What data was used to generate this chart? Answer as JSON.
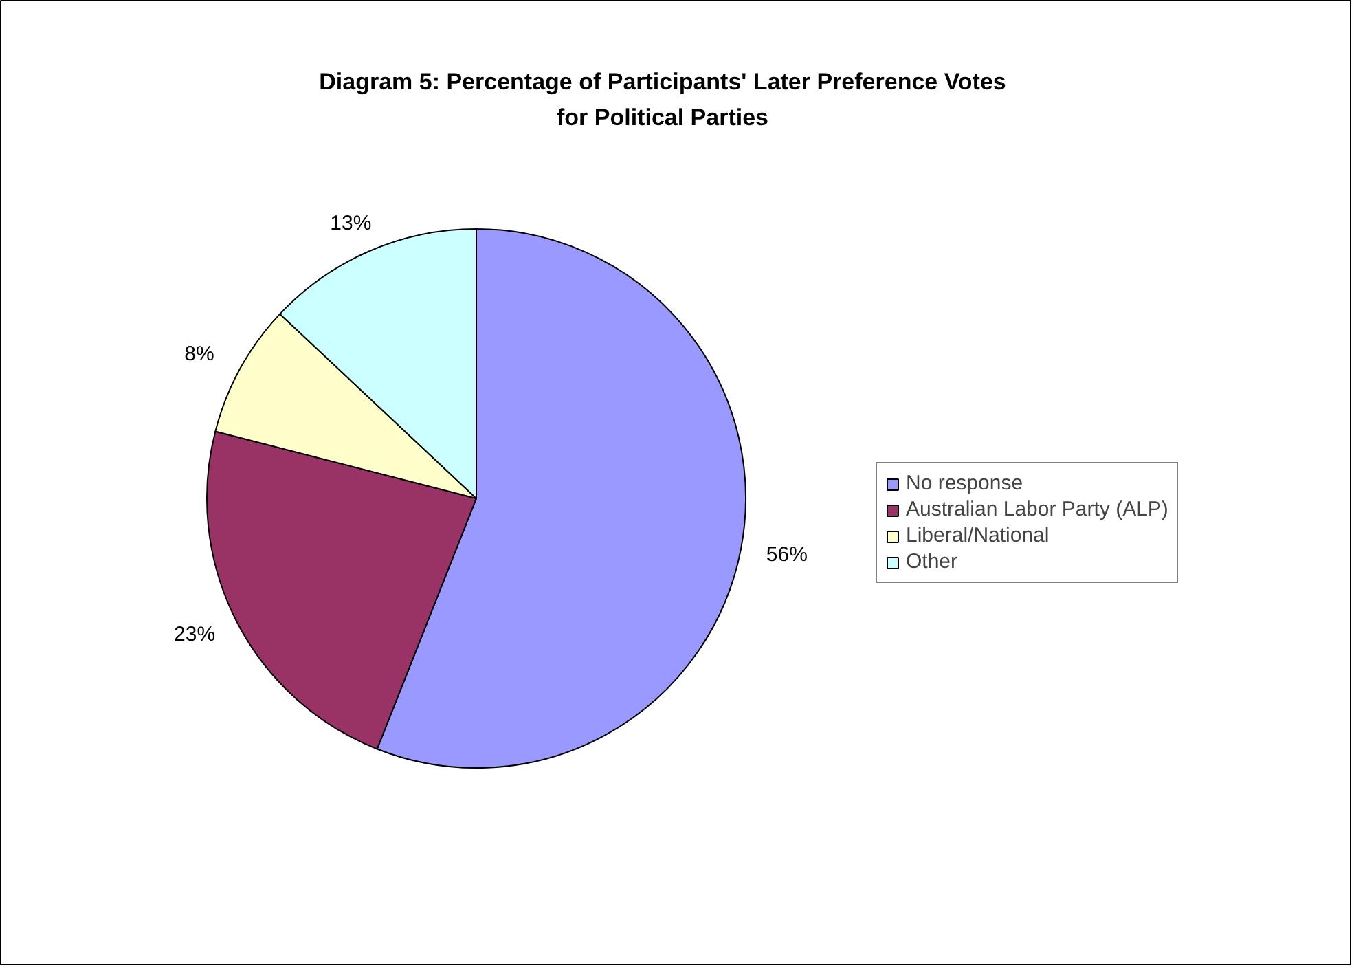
{
  "chart_data": {
    "type": "pie",
    "title": "Diagram 5: Percentage of Participants' Later Preference Votes for Political Parties",
    "categories": [
      "No response",
      "Australian Labor Party (ALP)",
      "Liberal/National",
      "Other"
    ],
    "values": [
      56,
      23,
      8,
      13
    ],
    "colors": [
      "#9999ff",
      "#993366",
      "#ffffcc",
      "#ccffff"
    ],
    "value_labels": [
      "56%",
      "23%",
      "8%",
      "13%"
    ],
    "legend": "right"
  }
}
